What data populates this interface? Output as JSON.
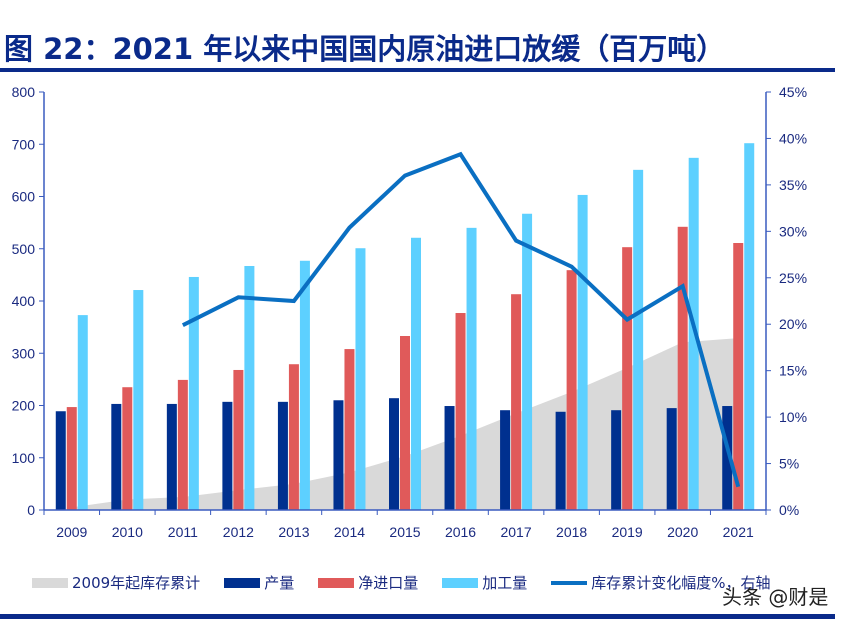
{
  "title": "图 22：2021 年以来中国国内原油进口放缓（百万吨）",
  "watermark": "头条 @财是",
  "colors": {
    "title": "#0a2a8a",
    "axis": "#3a5bbf",
    "tick_text": "#1a2a80"
  },
  "chart_data": {
    "type": "bar",
    "categories": [
      "2009",
      "2010",
      "2011",
      "2012",
      "2013",
      "2014",
      "2015",
      "2016",
      "2017",
      "2018",
      "2019",
      "2020",
      "2021"
    ],
    "y_left": {
      "range": [
        0,
        800
      ],
      "ticks": [
        "0",
        "100",
        "200",
        "300",
        "400",
        "500",
        "600",
        "700",
        "800"
      ]
    },
    "y_right": {
      "range": [
        0,
        45
      ],
      "ticks": [
        "0%",
        "5%",
        "10%",
        "15%",
        "20%",
        "25%",
        "30%",
        "35%",
        "40%",
        "45%"
      ]
    },
    "grid": false,
    "legend_position": "bottom",
    "series": [
      {
        "name": "2009年起库存累计",
        "type": "area",
        "axis": "left",
        "color": "#d9d9d9",
        "values": [
          5,
          20,
          25,
          38,
          50,
          72,
          103,
          142,
          185,
          226,
          272,
          321,
          329
        ]
      },
      {
        "name": "产量",
        "type": "bar",
        "axis": "left",
        "color": "#00308f",
        "values": [
          189,
          203,
          203,
          207,
          207,
          210,
          214,
          199,
          191,
          188,
          191,
          195,
          199
        ]
      },
      {
        "name": "净进口量",
        "type": "bar",
        "axis": "left",
        "color": "#e05a5a",
        "values": [
          197,
          235,
          249,
          268,
          279,
          308,
          333,
          377,
          413,
          459,
          503,
          542,
          511
        ]
      },
      {
        "name": "加工量",
        "type": "bar",
        "axis": "left",
        "color": "#5dd0ff",
        "values": [
          373,
          421,
          446,
          467,
          477,
          501,
          521,
          540,
          567,
          603,
          651,
          674,
          702
        ]
      },
      {
        "name": "库存累计变化幅度%，右轴",
        "type": "line",
        "axis": "right",
        "color": "#0a6fc2",
        "values": [
          null,
          null,
          19.9,
          22.9,
          22.5,
          30.4,
          36.0,
          38.3,
          29.0,
          26.2,
          20.5,
          24.1,
          2.5
        ]
      }
    ]
  }
}
